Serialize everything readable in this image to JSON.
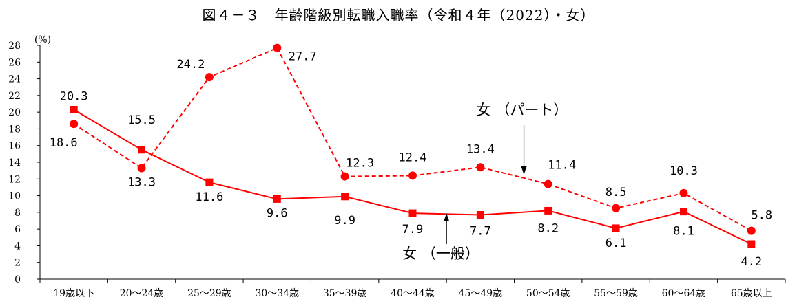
{
  "chart_data": {
    "type": "line",
    "title": "図４－３　年齢階級別転職入職率（令和４年（2022）・女）",
    "ylabel": "(%)",
    "ylim": [
      0,
      28
    ],
    "yticks": [
      0,
      2,
      4,
      6,
      8,
      10,
      12,
      14,
      16,
      18,
      20,
      22,
      24,
      26,
      28
    ],
    "grid": false,
    "categories": [
      "19歳以下",
      "20～24歳",
      "25～29歳",
      "30～34歳",
      "35～39歳",
      "40～44歳",
      "45～49歳",
      "50～54歳",
      "55～59歳",
      "60～64歳",
      "65歳以上"
    ],
    "series": [
      {
        "name": "女（一般）",
        "values": [
          20.3,
          15.5,
          11.6,
          9.6,
          9.9,
          7.9,
          7.7,
          8.2,
          6.1,
          8.1,
          4.2
        ],
        "labels": [
          "20.3",
          "15.5",
          "11.6",
          "9.6",
          "9.9",
          "7.9",
          "7.7",
          "8.2",
          "6.1",
          "8.1",
          "4.2"
        ],
        "style": "solid",
        "marker": "square",
        "color": "#ff0000"
      },
      {
        "name": "女（パート）",
        "values": [
          18.6,
          13.3,
          24.2,
          27.7,
          12.3,
          12.4,
          13.4,
          11.4,
          8.5,
          10.3,
          5.8
        ],
        "labels": [
          "18.6",
          "13.3",
          "24.2",
          "27.7",
          "12.3",
          "12.4",
          "13.4",
          "11.4",
          "8.5",
          "10.3",
          "5.8"
        ],
        "style": "dashed",
        "marker": "circle",
        "color": "#ff0000"
      }
    ]
  }
}
